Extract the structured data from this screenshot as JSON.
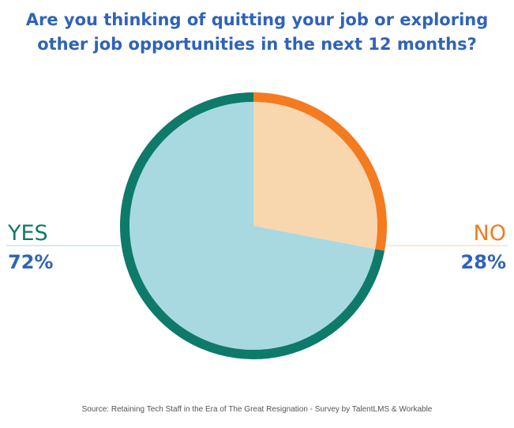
{
  "chart_data": {
    "type": "pie",
    "title": [
      "Are you thinking of quitting your job or exploring",
      "other job opportunities in the next 12 months?"
    ],
    "categories": [
      "YES",
      "NO"
    ],
    "values": [
      72,
      28
    ],
    "value_labels": [
      "72%",
      "28%"
    ],
    "colors": {
      "YES": "#0e7a6a",
      "NO": "#f47b20",
      "yes_fill": "#a8d9e0",
      "no_fill": "#f8d6ae",
      "title": "#2f63b8",
      "percent": "#2f63b8"
    },
    "legend": "none",
    "source": "Source: Retaining Tech Staff in the Era of The Great Resignation - Survey by TalentLMS & Workable"
  }
}
